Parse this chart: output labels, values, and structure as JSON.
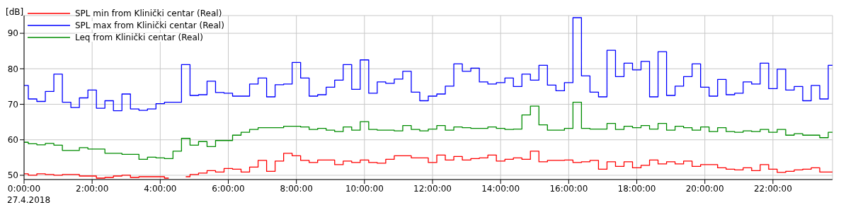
{
  "chart_data": {
    "type": "step",
    "ylabel": "[dB]",
    "annotations": [
      "27.4.2018"
    ],
    "x": [
      0,
      0.25,
      0.5,
      0.75,
      1,
      1.25,
      1.5,
      1.75,
      2,
      2.25,
      2.5,
      2.75,
      3,
      3.25,
      3.5,
      3.75,
      4,
      4.25,
      4.5,
      4.75,
      5,
      5.25,
      5.5,
      5.75,
      6,
      6.25,
      6.5,
      6.75,
      7,
      7.25,
      7.5,
      7.75,
      8,
      8.25,
      8.5,
      8.75,
      9,
      9.25,
      9.5,
      9.75,
      10,
      10.25,
      10.5,
      10.75,
      11,
      11.25,
      11.5,
      11.75,
      12,
      12.25,
      12.5,
      12.75,
      13,
      13.25,
      13.5,
      13.75,
      14,
      14.25,
      14.5,
      14.75,
      15,
      15.25,
      15.5,
      15.75,
      16,
      16.25,
      16.5,
      16.75,
      17,
      17.25,
      17.5,
      17.75,
      18,
      18.25,
      18.5,
      18.75,
      19,
      19.25,
      19.5,
      19.75,
      20,
      20.25,
      20.5,
      20.75,
      21,
      21.25,
      21.5,
      21.75,
      22,
      22.25,
      22.5,
      22.75,
      23,
      23.25,
      23.5,
      23.75
    ],
    "series": [
      {
        "name": "SPL min from Klinički centar (Real)",
        "color": "#ff0000",
        "values": [
          50.4,
          50.0,
          50.4,
          50.2,
          50.0,
          50.2,
          50.2,
          49.8,
          49.8,
          49.2,
          49.4,
          49.8,
          50.0,
          49.4,
          49.6,
          49.6,
          49.6,
          49.2,
          null,
          49.6,
          50.2,
          50.6,
          51.3,
          50.9,
          51.9,
          51.7,
          50.9,
          52.3,
          54.2,
          51.1,
          54.0,
          56.2,
          55.5,
          54.2,
          53.6,
          54.3,
          54.3,
          53.0,
          54.0,
          53.6,
          54.3,
          53.6,
          53.4,
          54.5,
          55.5,
          55.5,
          54.9,
          54.9,
          53.6,
          55.7,
          54.3,
          55.3,
          54.3,
          54.7,
          54.9,
          55.7,
          54.0,
          54.5,
          54.9,
          54.5,
          56.8,
          53.8,
          54.2,
          54.2,
          54.3,
          53.6,
          53.8,
          54.2,
          51.7,
          53.8,
          52.5,
          53.8,
          52.1,
          52.8,
          54.3,
          53.2,
          53.8,
          53.2,
          54.0,
          52.5,
          53.0,
          53.0,
          52.1,
          51.7,
          51.5,
          52.1,
          51.3,
          53.0,
          51.7,
          50.8,
          51.1,
          51.5,
          51.7,
          52.1,
          50.9,
          50.9
        ]
      },
      {
        "name": "SPL max from Klinički centar (Real)",
        "color": "#0000ff",
        "values": [
          75.3,
          71.5,
          70.8,
          73.6,
          78.5,
          70.6,
          69.1,
          71.8,
          74.0,
          68.9,
          71.0,
          68.2,
          72.9,
          68.7,
          68.3,
          68.7,
          70.2,
          70.6,
          70.6,
          81.2,
          72.5,
          72.7,
          76.5,
          73.3,
          73.1,
          72.3,
          72.3,
          75.7,
          77.4,
          72.1,
          75.5,
          75.7,
          81.8,
          77.4,
          72.3,
          72.7,
          74.8,
          76.8,
          81.2,
          74.2,
          82.5,
          73.1,
          76.3,
          75.9,
          77.1,
          79.3,
          73.4,
          71.0,
          72.3,
          72.9,
          75.1,
          81.4,
          79.3,
          80.2,
          76.3,
          75.7,
          76.1,
          77.4,
          75.0,
          78.5,
          76.8,
          81.0,
          75.4,
          73.8,
          76.1,
          94.4,
          78.0,
          73.4,
          72.1,
          85.2,
          77.8,
          81.6,
          79.7,
          82.1,
          72.1,
          84.8,
          72.5,
          75.1,
          77.8,
          81.4,
          74.8,
          72.3,
          77.0,
          72.7,
          73.1,
          76.3,
          75.7,
          81.6,
          74.4,
          79.9,
          74.0,
          75.0,
          71.0,
          75.3,
          71.5,
          81.0
        ]
      },
      {
        "name": "Leq from Klinički centar (Real)",
        "color": "#008c00",
        "values": [
          59.3,
          58.9,
          58.6,
          59.0,
          58.5,
          57.0,
          57.0,
          57.8,
          57.4,
          57.4,
          56.2,
          56.2,
          55.9,
          55.9,
          54.5,
          55.1,
          54.9,
          54.7,
          56.8,
          60.4,
          58.5,
          59.5,
          58.1,
          59.8,
          59.8,
          61.3,
          62.1,
          62.9,
          63.4,
          63.4,
          63.4,
          63.8,
          63.8,
          63.6,
          62.9,
          63.2,
          62.7,
          62.3,
          63.6,
          62.7,
          65.1,
          62.9,
          62.7,
          62.7,
          62.5,
          64.0,
          62.9,
          62.5,
          63.0,
          64.0,
          62.7,
          63.6,
          63.4,
          63.2,
          63.2,
          63.6,
          63.2,
          62.9,
          63.0,
          67.0,
          69.5,
          64.2,
          62.7,
          62.7,
          63.2,
          70.6,
          63.2,
          63.0,
          63.0,
          64.6,
          62.9,
          63.8,
          63.4,
          64.0,
          63.0,
          64.6,
          62.7,
          63.8,
          63.4,
          62.7,
          63.6,
          62.3,
          63.4,
          62.3,
          62.1,
          62.5,
          62.3,
          62.9,
          62.1,
          62.9,
          61.3,
          61.7,
          61.3,
          61.3,
          60.6,
          62.1
        ]
      }
    ],
    "xlim": [
      0,
      23.75
    ],
    "ylim": [
      48.8,
      95
    ],
    "xticks": [
      {
        "value": 0,
        "label": "0:00:00"
      },
      {
        "value": 2,
        "label": "2:00:00"
      },
      {
        "value": 4,
        "label": "4:00:00"
      },
      {
        "value": 6,
        "label": "6:00:00"
      },
      {
        "value": 8,
        "label": "8:00:00"
      },
      {
        "value": 10,
        "label": "10:00:00"
      },
      {
        "value": 12,
        "label": "12:00:00"
      },
      {
        "value": 14,
        "label": "14:00:00"
      },
      {
        "value": 16,
        "label": "16:00:00"
      },
      {
        "value": 18,
        "label": "18:00:00"
      },
      {
        "value": 20,
        "label": "20:00:00"
      },
      {
        "value": 22,
        "label": "22:00:00"
      }
    ],
    "yticks": [
      50,
      60,
      70,
      80,
      90
    ],
    "grid": true,
    "legend": "top left"
  }
}
